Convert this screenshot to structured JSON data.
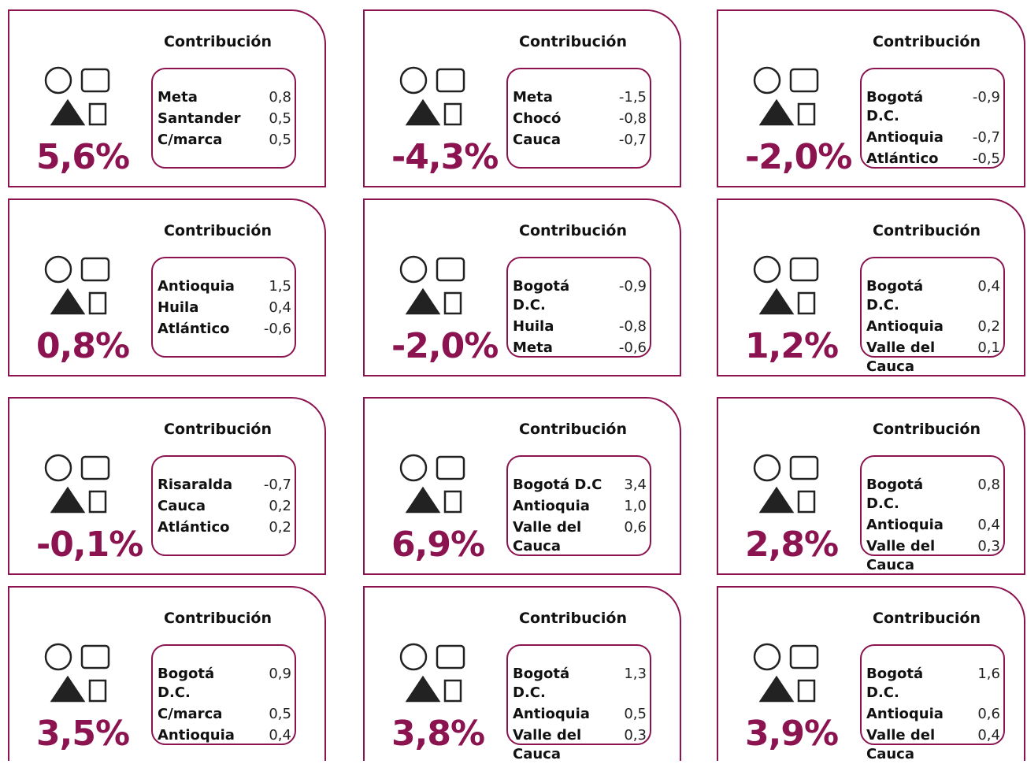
{
  "cards": [
    {
      "value": "5,6%",
      "heading": "Contribución",
      "rows": [
        {
          "name": "Meta",
          "value": "0,8"
        },
        {
          "name": "Santander",
          "value": "0,5"
        },
        {
          "name": "C/marca",
          "value": "0,5"
        }
      ]
    },
    {
      "value": "-4,3%",
      "heading": "Contribución",
      "rows": [
        {
          "name": "Meta",
          "value": "-1,5"
        },
        {
          "name": "Chocó",
          "value": "-0,8"
        },
        {
          "name": "Cauca",
          "value": "-0,7"
        }
      ]
    },
    {
      "value": "-2,0%",
      "heading": "Contribución",
      "rows": [
        {
          "name": "Bogotá D.C.",
          "value": "-0,9"
        },
        {
          "name": "Antioquia",
          "value": "-0,7"
        },
        {
          "name": "Atlántico",
          "value": "-0,5"
        }
      ]
    },
    {
      "value": "0,8%",
      "heading": "Contribución",
      "rows": [
        {
          "name": "Antioquia",
          "value": "1,5"
        },
        {
          "name": "Huila",
          "value": "0,4"
        },
        {
          "name": "Atlántico",
          "value": "-0,6"
        }
      ]
    },
    {
      "value": "-2,0%",
      "heading": "Contribución",
      "rows": [
        {
          "name": "Bogotá D.C.",
          "value": "-0,9"
        },
        {
          "name": "Huila",
          "value": "-0,8"
        },
        {
          "name": "Meta",
          "value": "-0,6"
        }
      ]
    },
    {
      "value": "1,2%",
      "heading": "Contribución",
      "rows": [
        {
          "name": "Bogotá D.C.",
          "value": "0,4"
        },
        {
          "name": "Antioquia",
          "value": "0,2"
        },
        {
          "name": "Valle del Cauca",
          "value": "0,1"
        }
      ]
    },
    {
      "value": "-0,1%",
      "heading": "Contribución",
      "rows": [
        {
          "name": "Risaralda",
          "value": "-0,7"
        },
        {
          "name": "Cauca",
          "value": "0,2"
        },
        {
          "name": "Atlántico",
          "value": "0,2"
        }
      ]
    },
    {
      "value": "6,9%",
      "heading": "Contribución",
      "rows": [
        {
          "name": "Bogotá D.C",
          "value": "3,4"
        },
        {
          "name": "Antioquia",
          "value": "1,0"
        },
        {
          "name": "Valle del Cauca",
          "value": "0,6"
        }
      ]
    },
    {
      "value": "2,8%",
      "heading": "Contribución",
      "rows": [
        {
          "name": "Bogotá D.C.",
          "value": "0,8"
        },
        {
          "name": "Antioquia",
          "value": "0,4"
        },
        {
          "name": "Valle del Cauca",
          "value": "0,3"
        }
      ]
    },
    {
      "value": "3,5%",
      "heading": "Contribución",
      "rows": [
        {
          "name": "Bogotá D.C.",
          "value": "0,9"
        },
        {
          "name": "C/marca",
          "value": "0,5"
        },
        {
          "name": "Antioquia",
          "value": "0,4"
        }
      ]
    },
    {
      "value": "3,8%",
      "heading": "Contribución",
      "rows": [
        {
          "name": "Bogotá D.C.",
          "value": "1,3"
        },
        {
          "name": "Antioquia",
          "value": "0,5"
        },
        {
          "name": "Valle del Cauca",
          "value": "0,3"
        }
      ]
    },
    {
      "value": "3,9%",
      "heading": "Contribución",
      "rows": [
        {
          "name": "Bogotá D.C.",
          "value": "1,6"
        },
        {
          "name": "Antioquia",
          "value": "0,6"
        },
        {
          "name": "Valle del Cauca",
          "value": "0,4"
        }
      ]
    }
  ]
}
